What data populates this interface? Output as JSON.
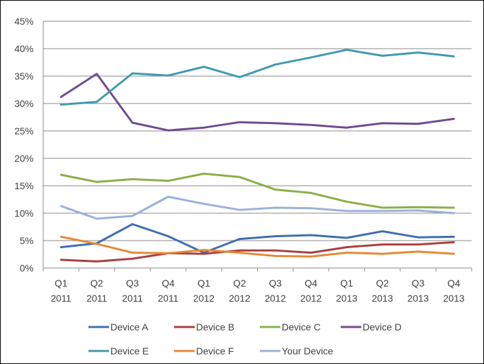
{
  "chart_data": {
    "type": "line",
    "title": "",
    "xlabel": "",
    "ylabel": "",
    "categories": [
      [
        "Q1",
        "2011"
      ],
      [
        "Q2",
        "2011"
      ],
      [
        "Q3",
        "2011"
      ],
      [
        "Q4",
        "2011"
      ],
      [
        "Q1",
        "2012"
      ],
      [
        "Q2",
        "2012"
      ],
      [
        "Q3",
        "2012"
      ],
      [
        "Q4",
        "2012"
      ],
      [
        "Q1",
        "2013"
      ],
      [
        "Q2",
        "2013"
      ],
      [
        "Q3",
        "2013"
      ],
      [
        "Q4",
        "2013"
      ]
    ],
    "ylim": [
      0,
      45
    ],
    "yticks": [
      "0%",
      "5%",
      "10%",
      "15%",
      "20%",
      "25%",
      "30%",
      "35%",
      "40%",
      "45%"
    ],
    "grid": true,
    "legend_position": "bottom",
    "series": [
      {
        "name": "Device A",
        "color": "#3E6FB0",
        "values": [
          3.8,
          4.5,
          8.0,
          5.8,
          2.8,
          5.3,
          5.8,
          6.0,
          5.5,
          6.7,
          5.6,
          5.7
        ]
      },
      {
        "name": "Device B",
        "color": "#A9403D",
        "values": [
          1.5,
          1.2,
          1.7,
          2.7,
          2.6,
          3.2,
          3.2,
          2.8,
          3.8,
          4.3,
          4.3,
          4.7
        ]
      },
      {
        "name": "Device C",
        "color": "#8BAF46",
        "values": [
          17.0,
          15.7,
          16.2,
          15.9,
          17.2,
          16.6,
          14.3,
          13.7,
          12.1,
          11.0,
          11.1,
          11.0
        ]
      },
      {
        "name": "Device D",
        "color": "#6F4A92",
        "values": [
          31.2,
          35.4,
          26.5,
          25.1,
          25.6,
          26.6,
          26.4,
          26.1,
          25.6,
          26.4,
          26.3,
          27.2
        ]
      },
      {
        "name": "Device E",
        "color": "#3F9AAE",
        "values": [
          29.8,
          30.3,
          35.5,
          35.1,
          36.7,
          34.8,
          37.1,
          38.4,
          39.8,
          38.7,
          39.3,
          38.6
        ]
      },
      {
        "name": "Device F",
        "color": "#E48A34",
        "values": [
          5.7,
          4.4,
          2.8,
          2.7,
          3.3,
          2.8,
          2.2,
          2.1,
          2.8,
          2.6,
          3.0,
          2.6
        ]
      },
      {
        "name": "Your Device",
        "color": "#9AB1DA",
        "values": [
          11.3,
          9.0,
          9.5,
          13.0,
          11.7,
          10.6,
          11.0,
          10.9,
          10.4,
          10.4,
          10.5,
          10.0
        ]
      }
    ]
  }
}
